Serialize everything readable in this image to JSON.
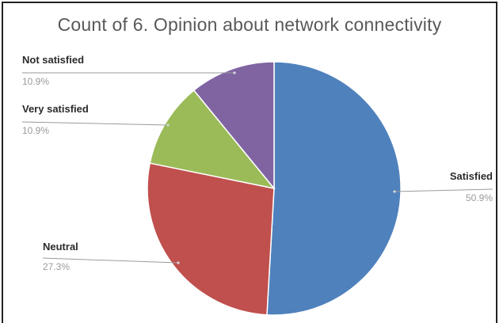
{
  "chart_data": {
    "type": "pie",
    "title": "Count of 6. Opinion about network connectivity",
    "slices": [
      {
        "label": "Satisfied",
        "pct_label": "50.9%",
        "value": 50.9,
        "color": "#4F81BD"
      },
      {
        "label": "Neutral",
        "pct_label": "27.3%",
        "value": 27.3,
        "color": "#C0504D"
      },
      {
        "label": "Very satisfied",
        "pct_label": "10.9%",
        "value": 10.9,
        "color": "#9BBB59"
      },
      {
        "label": "Not satisfied",
        "pct_label": "10.9%",
        "value": 10.9,
        "color": "#8064A2"
      }
    ],
    "legend": "none",
    "data_labels": "outside with leader lines"
  }
}
